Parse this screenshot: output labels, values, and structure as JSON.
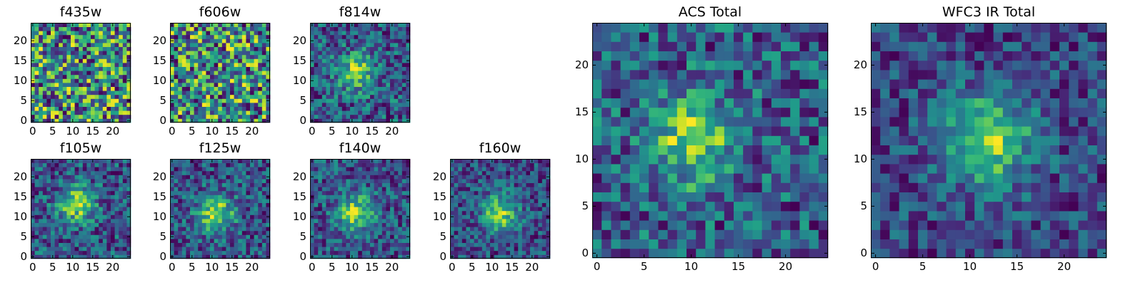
{
  "chart_data": [
    {
      "type": "heatmap",
      "title": "f435w",
      "colormap": "viridis",
      "source_shape": [
        25,
        25
      ],
      "xticks": [
        "0",
        "5",
        "10",
        "15",
        "20"
      ],
      "yticks": [
        "0",
        "5",
        "10",
        "15",
        "20"
      ],
      "xlim": [
        -0.5,
        24.5
      ],
      "ylim": [
        -0.5,
        24.5
      ],
      "peak": null,
      "noise": 0.42
    },
    {
      "type": "heatmap",
      "title": "f606w",
      "colormap": "viridis",
      "source_shape": [
        25,
        25
      ],
      "xticks": [
        "0",
        "5",
        "10",
        "15",
        "20"
      ],
      "yticks": [
        "0",
        "5",
        "10",
        "15",
        "20"
      ],
      "xlim": [
        -0.5,
        24.5
      ],
      "ylim": [
        -0.5,
        24.5
      ],
      "peak": null,
      "noise": 0.44
    },
    {
      "type": "heatmap",
      "title": "f814w",
      "colormap": "viridis",
      "source_shape": [
        25,
        25
      ],
      "xticks": [
        "0",
        "5",
        "10",
        "15",
        "20"
      ],
      "yticks": [
        "0",
        "5",
        "10",
        "15",
        "20"
      ],
      "xlim": [
        -0.5,
        24.5
      ],
      "ylim": [
        -0.5,
        24.5
      ],
      "peak": [
        11,
        12
      ],
      "noise": 0.32
    },
    {
      "type": "heatmap",
      "title": "f105w",
      "colormap": "viridis",
      "source_shape": [
        25,
        25
      ],
      "xticks": [
        "0",
        "5",
        "10",
        "15",
        "20"
      ],
      "yticks": [
        "0",
        "5",
        "10",
        "15",
        "20"
      ],
      "xlim": [
        -0.5,
        24.5
      ],
      "ylim": [
        -0.5,
        24.5
      ],
      "peak": [
        11,
        13
      ],
      "noise": 0.28
    },
    {
      "type": "heatmap",
      "title": "f125w",
      "colormap": "viridis",
      "source_shape": [
        25,
        25
      ],
      "xticks": [
        "0",
        "5",
        "10",
        "15",
        "20"
      ],
      "yticks": [
        "0",
        "5",
        "10",
        "15",
        "20"
      ],
      "xlim": [
        -0.5,
        24.5
      ],
      "ylim": [
        -0.5,
        24.5
      ],
      "peak": [
        11,
        11
      ],
      "noise": 0.26
    },
    {
      "type": "heatmap",
      "title": "f140w",
      "colormap": "viridis",
      "source_shape": [
        25,
        25
      ],
      "xticks": [
        "0",
        "5",
        "10",
        "15",
        "20"
      ],
      "yticks": [
        "0",
        "5",
        "10",
        "15",
        "20"
      ],
      "xlim": [
        -0.5,
        24.5
      ],
      "ylim": [
        -0.5,
        24.5
      ],
      "peak": [
        11,
        11
      ],
      "noise": 0.26
    },
    {
      "type": "heatmap",
      "title": "f160w",
      "colormap": "viridis",
      "source_shape": [
        25,
        25
      ],
      "xticks": [
        "0",
        "5",
        "10",
        "15",
        "20"
      ],
      "yticks": [
        "0",
        "5",
        "10",
        "15",
        "20"
      ],
      "xlim": [
        -0.5,
        24.5
      ],
      "ylim": [
        -0.5,
        24.5
      ],
      "peak": [
        12,
        11
      ],
      "noise": 0.24
    },
    {
      "type": "heatmap",
      "title": "ACS Total",
      "colormap": "viridis",
      "source_shape": [
        25,
        25
      ],
      "xticks": [
        "0",
        "5",
        "10",
        "15",
        "20"
      ],
      "yticks": [
        "0",
        "5",
        "10",
        "15",
        "20"
      ],
      "xlim": [
        -0.5,
        24.5
      ],
      "ylim": [
        -0.5,
        24.5
      ],
      "peak": [
        10,
        12
      ],
      "noise": 0.3
    },
    {
      "type": "heatmap",
      "title": "WFC3 IR Total",
      "colormap": "viridis",
      "source_shape": [
        25,
        25
      ],
      "xticks": [
        "0",
        "5",
        "10",
        "15",
        "20"
      ],
      "yticks": [
        "0",
        "5",
        "10",
        "15",
        "20"
      ],
      "xlim": [
        -0.5,
        24.5
      ],
      "ylim": [
        -0.5,
        24.5
      ],
      "peak": [
        12,
        12
      ],
      "noise": 0.2
    }
  ]
}
